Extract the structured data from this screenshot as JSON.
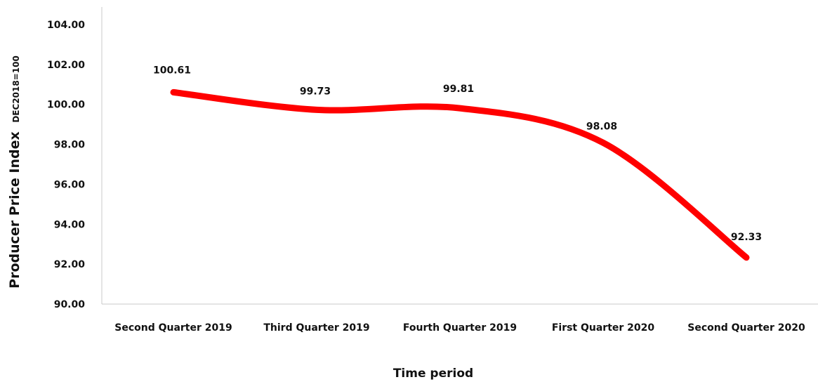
{
  "chart_data": {
    "type": "line",
    "title": "",
    "xlabel": "Time period",
    "ylabel": "Producer Price Index",
    "ylabel_sub": "DEC2018=100",
    "categories": [
      "Second Quarter 2019",
      "Third Quarter 2019",
      "Fourth Quarter 2019",
      "First Quarter 2020",
      "Second Quarter 2020"
    ],
    "series": [
      {
        "values": [
          100.61,
          99.73,
          99.81,
          98.08,
          92.33
        ],
        "labels": [
          "100.61",
          "99.73",
          "99.81",
          "98.08",
          "92.33"
        ],
        "color": "#ff0000",
        "smooth": true
      }
    ],
    "ylim": [
      90,
      104
    ],
    "yticks": [
      90,
      92,
      94,
      96,
      98,
      100,
      102,
      104
    ],
    "ytick_labels": [
      "90.00",
      "92.00",
      "94.00",
      "96.00",
      "98.00",
      "100.00",
      "102.00",
      "104.00"
    ],
    "grid": false,
    "legend": "none"
  }
}
